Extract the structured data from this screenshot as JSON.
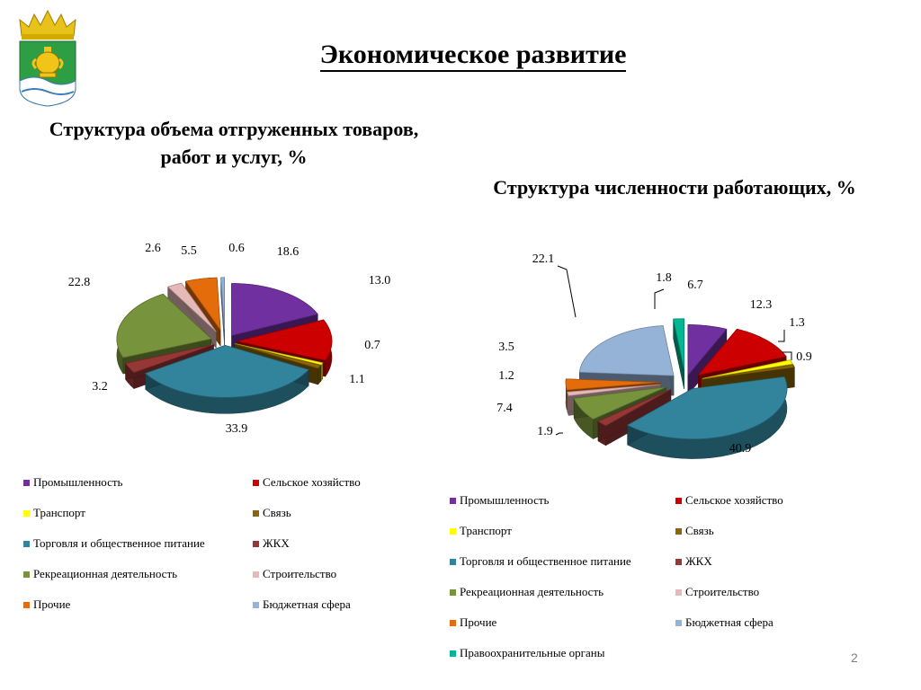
{
  "header": {
    "title": "Экономическое развитие"
  },
  "page_number": "2",
  "colors": {
    "Промышленность": "#7030a0",
    "Сельское хозяйство": "#cc0000",
    "Транспорт": "#ffff00",
    "Связь": "#8b6508",
    "Торговля и общественное питание": "#31849b",
    "ЖКХ": "#953735",
    "Рекреационная деятельность": "#77933c",
    "Строительство": "#e6b9b8",
    "Прочие": "#e46c0a",
    "Бюджетная сфера": "#95b3d7",
    "Правоохранительные органы": "#00b894"
  },
  "chart_data": [
    {
      "type": "pie",
      "title": "Структура объема отгруженных товаров, работ и услуг, %",
      "categories": [
        "Промышленность",
        "Сельское хозяйство",
        "Транспорт",
        "Связь",
        "Торговля и общественное питание",
        "ЖКХ",
        "Рекреационная деятельность",
        "Строительство",
        "Прочие",
        "Бюджетная сфера"
      ],
      "values": [
        18.6,
        13.0,
        0.7,
        1.1,
        33.9,
        3.2,
        22.8,
        2.6,
        5.5,
        0.6
      ],
      "labels": [
        "18.6",
        "13.0",
        "0.7",
        "1.1",
        "33.9",
        "3.2",
        "22.8",
        "2.6",
        "5.5",
        "0.6"
      ],
      "legend": "bottom"
    },
    {
      "type": "pie",
      "title": "Структура численности работающих, %",
      "categories": [
        "Промышленность",
        "Сельское хозяйство",
        "Транспорт",
        "Связь",
        "Торговля и общественное питание",
        "ЖКХ",
        "Рекреационная деятельность",
        "Строительство",
        "Прочие",
        "Бюджетная сфера",
        "Правоохранительные органы"
      ],
      "values": [
        6.7,
        12.3,
        1.3,
        0.9,
        40.9,
        1.9,
        7.4,
        1.2,
        3.5,
        22.1,
        1.8
      ],
      "labels": [
        "6.7",
        "12.3",
        "1.3",
        "0.9",
        "40.9",
        "1.9",
        "7.4",
        "1.2",
        "3.5",
        "22.1",
        "1.8"
      ],
      "legend": "bottom"
    }
  ]
}
